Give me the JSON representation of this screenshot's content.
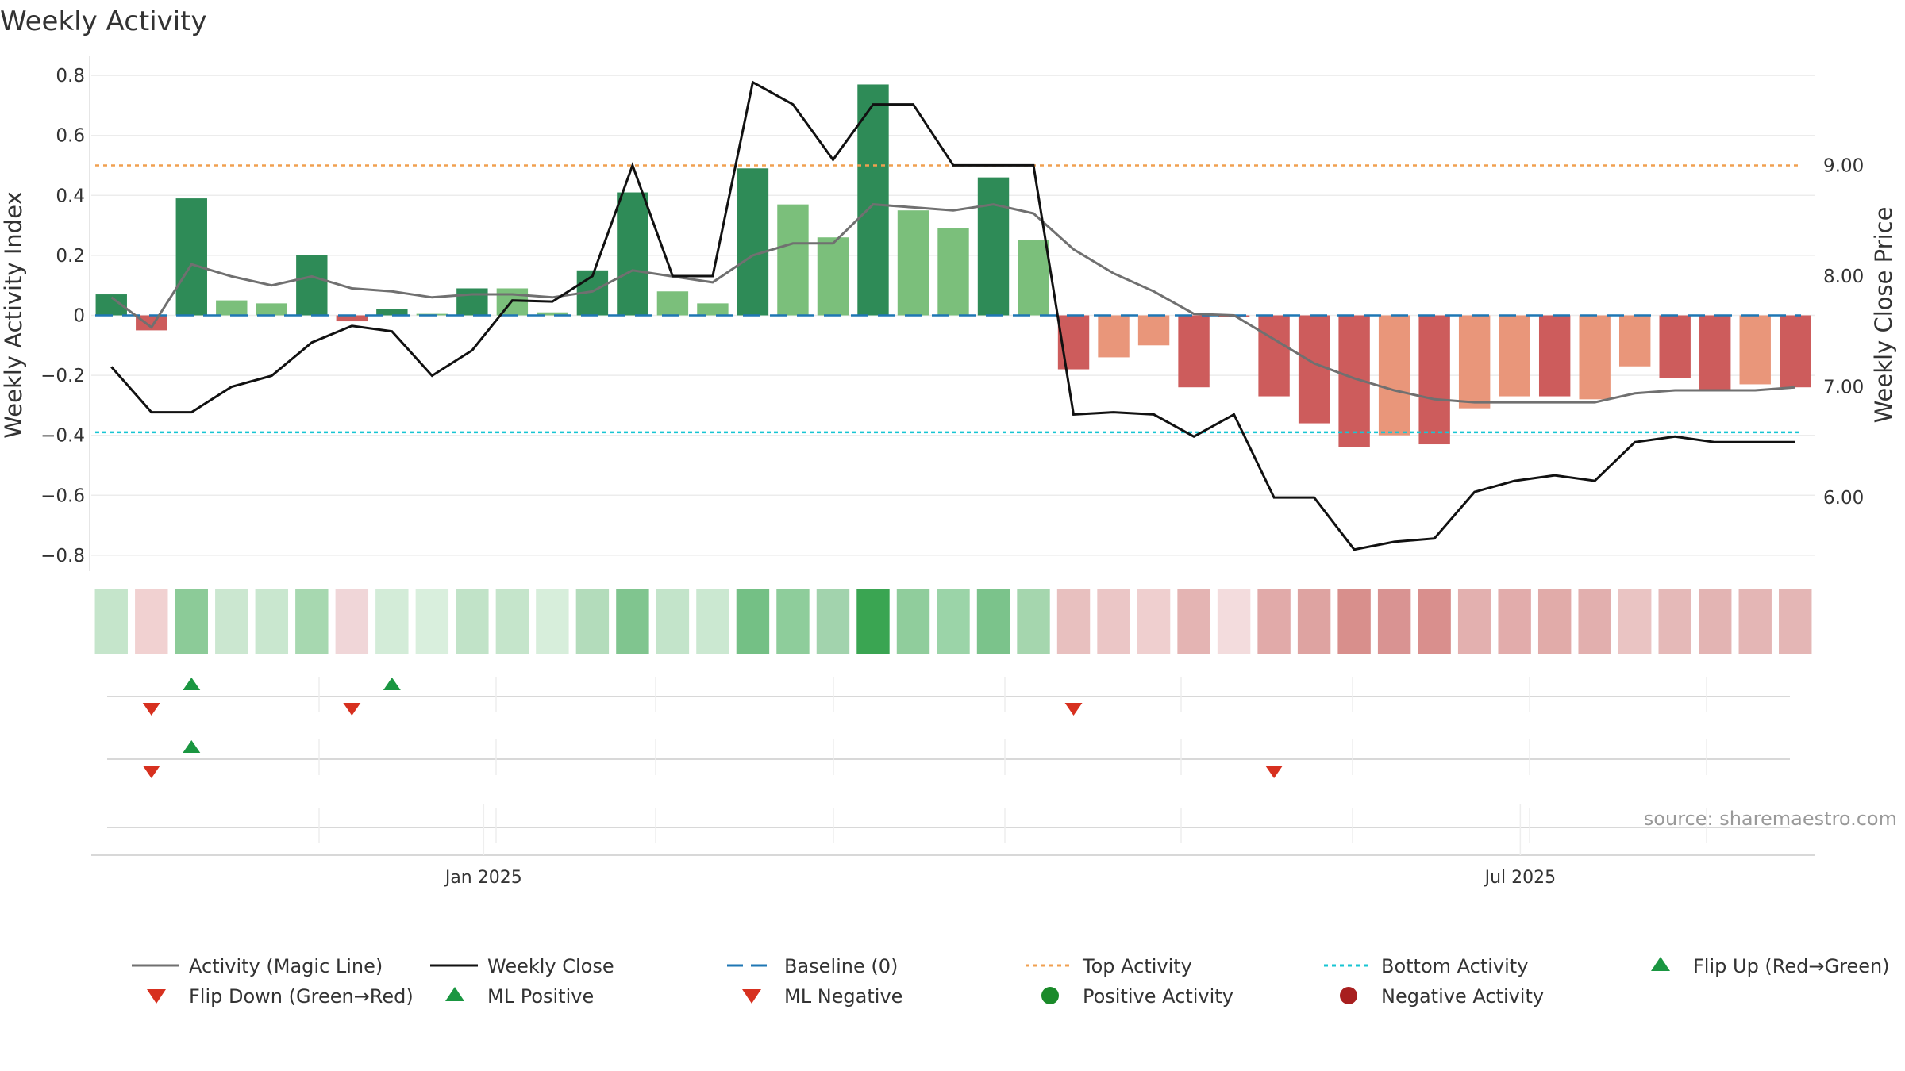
{
  "chart_data": {
    "type": "bar",
    "title": "Weekly Activity",
    "ylabel_left": "Weekly Activity Index",
    "ylabel_right": "Weekly Close Price",
    "source": "source: sharemaestro.com",
    "x_ticks": [
      {
        "date": "2025-01-01",
        "label": "Jan 2025"
      },
      {
        "date": "2025-07-01",
        "label": "Jul 2025"
      }
    ],
    "left_axis": {
      "ylim": [
        -0.84,
        0.84
      ],
      "ticks": [
        {
          "value": 0.8,
          "label": "0.8"
        },
        {
          "value": 0.6,
          "label": "0.6"
        },
        {
          "value": 0.4,
          "label": "0.4"
        },
        {
          "value": 0.2,
          "label": "0.2"
        },
        {
          "value": 0,
          "label": "0"
        },
        {
          "value": -0.2,
          "label": "−0.2"
        },
        {
          "value": -0.4,
          "label": "−0.4"
        },
        {
          "value": -0.6,
          "label": "−0.6"
        },
        {
          "value": -0.8,
          "label": "−0.8"
        }
      ]
    },
    "right_axis": {
      "ylim": [
        5.37,
        9.92
      ],
      "ticks": [
        {
          "value": 9.0,
          "label": "9.00"
        },
        {
          "value": 8.0,
          "label": "8.00"
        },
        {
          "value": 7.0,
          "label": "7.00"
        },
        {
          "value": 6.0,
          "label": "6.00"
        }
      ]
    },
    "weeks": [
      "2024-10-28",
      "2024-11-04",
      "2024-11-11",
      "2024-11-18",
      "2024-11-25",
      "2024-12-02",
      "2024-12-09",
      "2024-12-16",
      "2024-12-23",
      "2024-12-30",
      "2025-01-06",
      "2025-01-13",
      "2025-01-20",
      "2025-01-27",
      "2025-02-03",
      "2025-02-10",
      "2025-02-17",
      "2025-02-24",
      "2025-03-03",
      "2025-03-10",
      "2025-03-17",
      "2025-03-24",
      "2025-03-31",
      "2025-04-07",
      "2025-04-14",
      "2025-04-21",
      "2025-04-28",
      "2025-05-05",
      "2025-05-12",
      "2025-05-19",
      "2025-05-26",
      "2025-06-02",
      "2025-06-09",
      "2025-06-16",
      "2025-06-23",
      "2025-06-30",
      "2025-07-07",
      "2025-07-14",
      "2025-07-21",
      "2025-07-28",
      "2025-08-04",
      "2025-08-11",
      "2025-08-18"
    ],
    "activity": [
      0.07,
      -0.05,
      0.39,
      0.05,
      0.04,
      0.2,
      -0.02,
      0.02,
      0.005,
      0.09,
      0.09,
      0.01,
      0.15,
      0.41,
      0.08,
      0.04,
      0.49,
      0.37,
      0.26,
      0.77,
      0.35,
      0.29,
      0.46,
      0.25,
      -0.18,
      -0.14,
      -0.1,
      -0.24,
      -0.005,
      -0.27,
      -0.36,
      -0.44,
      -0.4,
      -0.43,
      -0.31,
      -0.27,
      -0.27,
      -0.28,
      -0.17,
      -0.21,
      -0.25,
      -0.23,
      -0.24
    ],
    "bar_colors": [
      "#2e8b57",
      "#cd5c5c",
      "#2e8b57",
      "#7bbf7b",
      "#7bbf7b",
      "#2e8b57",
      "#cd5c5c",
      "#2e8b57",
      "#7bbf7b",
      "#2e8b57",
      "#7bbf7b",
      "#7bbf7b",
      "#2e8b57",
      "#2e8b57",
      "#7bbf7b",
      "#7bbf7b",
      "#2e8b57",
      "#7bbf7b",
      "#7bbf7b",
      "#2e8b57",
      "#7bbf7b",
      "#7bbf7b",
      "#2e8b57",
      "#7bbf7b",
      "#cd5c5c",
      "#e9967a",
      "#e9967a",
      "#cd5c5c",
      "#cd5c5c",
      "#cd5c5c",
      "#cd5c5c",
      "#cd5c5c",
      "#e9967a",
      "#cd5c5c",
      "#e9967a",
      "#e9967a",
      "#cd5c5c",
      "#e9967a",
      "#e9967a",
      "#cd5c5c",
      "#cd5c5c",
      "#e9967a",
      "#cd5c5c"
    ],
    "heat_colors": [
      "#c5e5cb",
      "#f1d1d1",
      "#8ccb98",
      "#cbe7d0",
      "#c9e7cf",
      "#a7d8b0",
      "#f0d6d8",
      "#d3ecd8",
      "#d9efdd",
      "#c1e3c8",
      "#c5e5cb",
      "#d7eedb",
      "#b3dcbb",
      "#80c58f",
      "#c3e4ca",
      "#cbe8d1",
      "#74c085",
      "#8ecd9b",
      "#a2d3ad",
      "#3aa552",
      "#90cd9c",
      "#9bd4a8",
      "#7bc38b",
      "#a5d6ae",
      "#e8c0bf",
      "#ebc6c6",
      "#efcfcf",
      "#e4b4b3",
      "#f3dcdd",
      "#e1aaa9",
      "#dea3a1",
      "#d88f8c",
      "#d99392",
      "#d98f8d",
      "#e3b0af",
      "#e2acab",
      "#e1aba9",
      "#e2afae",
      "#eac4c3",
      "#e5b9b8",
      "#e3b4b3",
      "#e4b6b5",
      "#e4b6b5"
    ],
    "magic_line": [
      0.06,
      -0.04,
      0.17,
      0.13,
      0.1,
      0.13,
      0.09,
      0.08,
      0.06,
      0.07,
      0.07,
      0.06,
      0.08,
      0.15,
      0.13,
      0.11,
      0.2,
      0.24,
      0.24,
      0.37,
      0.36,
      0.35,
      0.37,
      0.34,
      0.22,
      0.14,
      0.08,
      0.005,
      0.0,
      -0.08,
      -0.16,
      -0.21,
      -0.25,
      -0.28,
      -0.29,
      -0.29,
      -0.29,
      -0.29,
      -0.26,
      -0.25,
      -0.25,
      -0.25,
      -0.24
    ],
    "weekly_close": [
      7.18,
      6.77,
      6.77,
      7.0,
      7.1,
      7.4,
      7.55,
      7.5,
      7.1,
      7.33,
      7.78,
      7.77,
      8.0,
      9.0,
      8.0,
      8.0,
      9.75,
      9.55,
      9.05,
      9.55,
      9.55,
      9.0,
      9.0,
      9.0,
      6.75,
      6.77,
      6.75,
      6.55,
      6.75,
      6.0,
      6.0,
      5.53,
      5.6,
      5.63,
      6.05,
      6.15,
      6.2,
      6.15,
      6.5,
      6.55,
      6.5,
      6.5,
      6.5
    ],
    "reference_lines": [
      {
        "name": "Baseline (0)",
        "value": 0,
        "color": "#1f77b4"
      },
      {
        "name": "Top Activity",
        "value": 0.5,
        "color": "#f0a050"
      },
      {
        "name": "Bottom Activity",
        "value": -0.39,
        "color": "#17c5d3"
      }
    ],
    "signal_rows": [
      {
        "up": [
          2,
          7
        ],
        "down": [
          1,
          6,
          24
        ]
      },
      {
        "up": [
          2
        ],
        "down": [
          1,
          29
        ]
      },
      {
        "up": [],
        "down": []
      }
    ],
    "legend": [
      {
        "label": "Activity (Magic Line)",
        "kind": "line",
        "color": "#707070"
      },
      {
        "label": "Weekly Close",
        "kind": "line",
        "color": "#111111"
      },
      {
        "label": "Baseline (0)",
        "kind": "dashed",
        "color": "#1f77b4"
      },
      {
        "label": "Top Activity",
        "kind": "dotted",
        "color": "#f0a050"
      },
      {
        "label": "Bottom Activity",
        "kind": "dotted",
        "color": "#17c5d3"
      },
      {
        "label": "Flip Up (Red→Green)",
        "kind": "triangle-up",
        "color": "#1a9641"
      },
      {
        "label": "Flip Down (Green→Red)",
        "kind": "triangle-down",
        "color": "#d7301f"
      },
      {
        "label": "ML Positive",
        "kind": "triangle-up",
        "color": "#1a9641"
      },
      {
        "label": "ML Negative",
        "kind": "triangle-down",
        "color": "#d7301f"
      },
      {
        "label": "Positive Activity",
        "kind": "circle",
        "color": "#1a8a2a"
      },
      {
        "label": "Negative Activity",
        "kind": "circle",
        "color": "#a81f1f"
      }
    ]
  }
}
